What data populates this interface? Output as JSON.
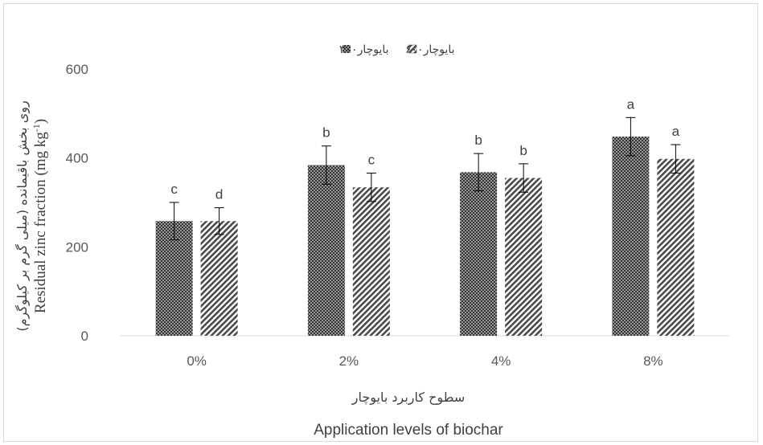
{
  "chart_data": {
    "type": "bar",
    "categories": [
      "0%",
      "2%",
      "4%",
      "8%"
    ],
    "series": [
      {
        "name": "بایوچار۳۰۰",
        "values": [
          258,
          384,
          368,
          448
        ],
        "errors": [
          42,
          43,
          42,
          43
        ],
        "letters": [
          "c",
          "b",
          "b",
          "a"
        ]
      },
      {
        "name": "بایوچار۶۰۰",
        "values": [
          258,
          334,
          355,
          398
        ],
        "errors": [
          30,
          32,
          32,
          32
        ],
        "letters": [
          "d",
          "c",
          "b",
          "a"
        ]
      }
    ],
    "yticks": [
      0,
      200,
      400,
      600
    ],
    "ylim": [
      0,
      600
    ],
    "xlabel_fa": "سطوح کاربرد بایوچار",
    "xlabel_en": "Application levels of biochar",
    "ylabel_fa": "روی بخش باقیمانده (میلی گرم بر کیلوگرم)",
    "ylabel_en_main": "Residual zinc fraction (mg kg",
    "ylabel_en_sup": "-1",
    "ylabel_en_close": ")",
    "legend_position": "top-center",
    "grid": false,
    "colors": {
      "series1": "#404040",
      "series2": "#595959",
      "axis": "#d9d9d9",
      "text": "#595959"
    }
  }
}
